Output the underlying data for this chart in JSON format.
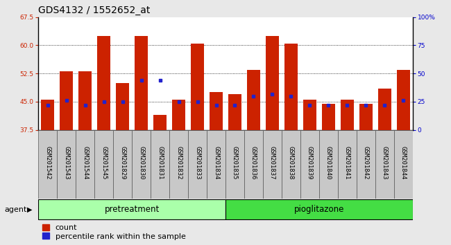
{
  "title": "GDS4132 / 1552652_at",
  "samples": [
    "GSM201542",
    "GSM201543",
    "GSM201544",
    "GSM201545",
    "GSM201829",
    "GSM201830",
    "GSM201831",
    "GSM201832",
    "GSM201833",
    "GSM201834",
    "GSM201835",
    "GSM201836",
    "GSM201837",
    "GSM201838",
    "GSM201839",
    "GSM201840",
    "GSM201841",
    "GSM201842",
    "GSM201843",
    "GSM201844"
  ],
  "count_values": [
    45.5,
    53.0,
    53.0,
    62.5,
    50.0,
    62.5,
    41.5,
    45.5,
    60.5,
    47.5,
    47.0,
    53.5,
    62.5,
    60.5,
    45.5,
    44.5,
    45.5,
    44.5,
    48.5,
    53.5
  ],
  "percentile_values": [
    22,
    26,
    22,
    25,
    25,
    44,
    44,
    25,
    25,
    22,
    22,
    30,
    32,
    30,
    22,
    22,
    22,
    22,
    22,
    26
  ],
  "group_split": 10,
  "group1_label": "pretreatment",
  "group2_label": "pioglitazone",
  "bar_color": "#cc2200",
  "dot_color": "#2222cc",
  "ylim_left": [
    37.5,
    67.5
  ],
  "yticks_left": [
    37.5,
    45.0,
    52.5,
    60.0,
    67.5
  ],
  "ylim_right": [
    0,
    100
  ],
  "yticks_right": [
    0,
    25,
    50,
    75,
    100
  ],
  "ylabel_right_labels": [
    "0",
    "25",
    "50",
    "75",
    "100%"
  ],
  "background_color": "#e8e8e8",
  "plot_bg_color": "#ffffff",
  "label_box_color": "#c8c8c8",
  "group_color1": "#aaffaa",
  "group_color2": "#44dd44",
  "title_fontsize": 10,
  "tick_fontsize": 6.5,
  "label_fontsize": 6.5,
  "legend_fontsize": 8
}
